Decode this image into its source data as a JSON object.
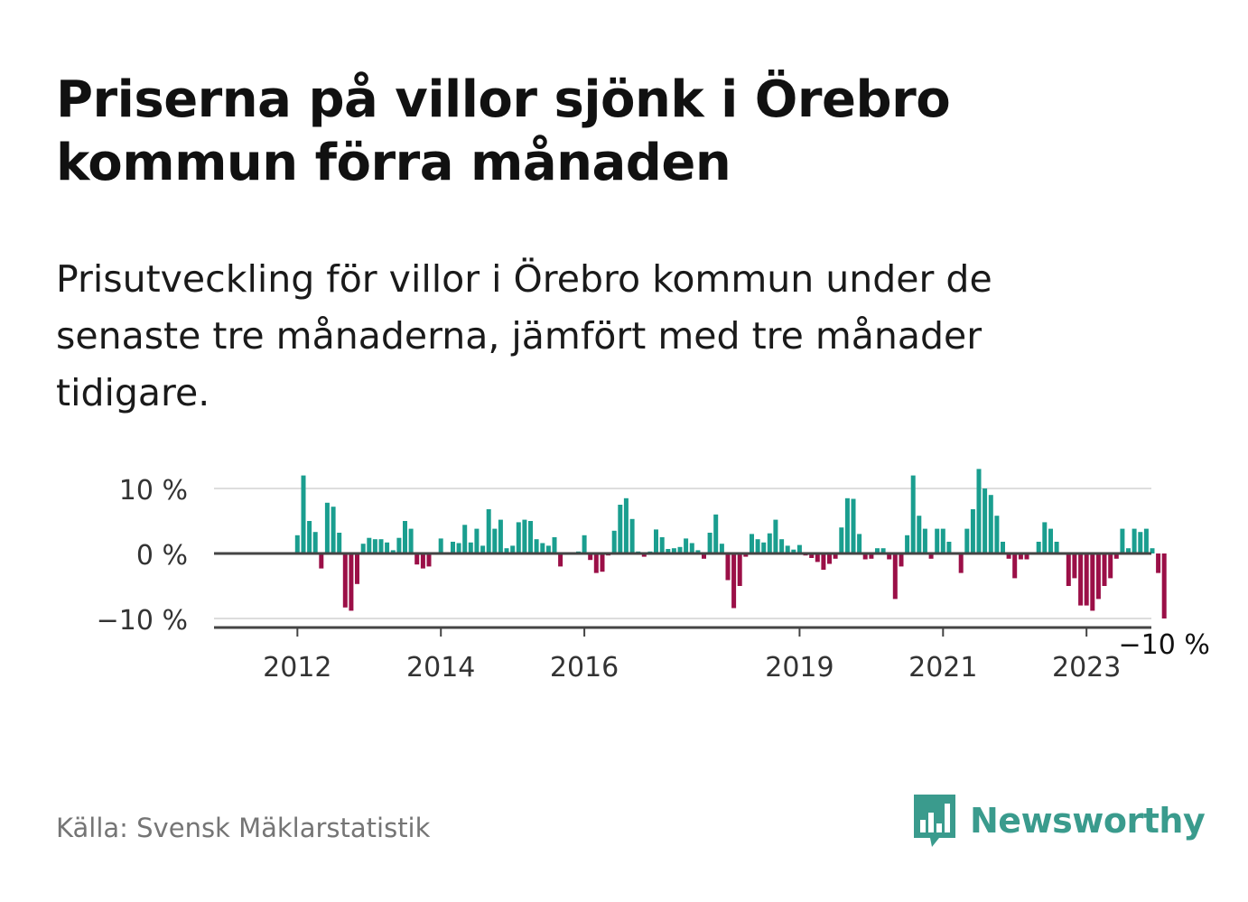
{
  "title": "Priserna på villor sjönk i Örebro kommun förra månaden",
  "subtitle": "Prisutveckling för villor i Örebro kommun under de senaste tre månaderna, jämfört med tre månader tidigare.",
  "source": "Källa: Svensk Mäklarstatistik",
  "logo_text": "Newsworthy",
  "colors": {
    "positive": "#1a9e8f",
    "negative": "#9b0f47",
    "grid": "#dddddd",
    "baseline": "#444444",
    "logo": "#3a9b8d"
  },
  "chart_data": {
    "type": "bar",
    "start": "2011-06",
    "ylim": [
      -11,
      10
    ],
    "yticks": [
      {
        "v": 10,
        "label": "10 %"
      },
      {
        "v": 0,
        "label": "0 %"
      },
      {
        "v": -10,
        "label": "−10 %"
      }
    ],
    "xticks": [
      {
        "year": 2012,
        "label": "2012"
      },
      {
        "year": 2014,
        "label": "2014"
      },
      {
        "year": 2016,
        "label": "2016"
      },
      {
        "year": 2019,
        "label": "2019"
      },
      {
        "year": 2021,
        "label": "2021"
      },
      {
        "year": 2023,
        "label": "2023"
      }
    ],
    "annotation": {
      "label": "−10 %",
      "value": -10
    },
    "values": [
      0,
      0,
      0,
      0,
      0,
      0,
      0,
      2.8,
      12,
      5,
      3.3,
      -2.3,
      7.8,
      7.2,
      3.2,
      -8.3,
      -8.8,
      -4.7,
      1.5,
      2.4,
      2.2,
      2.2,
      1.7,
      0.5,
      2.4,
      5,
      3.8,
      -1.7,
      -2.3,
      -2,
      0.2,
      2.3,
      0,
      1.8,
      1.6,
      4.4,
      1.7,
      3.8,
      1.2,
      6.8,
      3.8,
      5.2,
      0.8,
      1.2,
      4.8,
      5.2,
      5,
      2.2,
      1.6,
      1.2,
      2.5,
      -2,
      0.2,
      0.2,
      0.3,
      2.8,
      -1,
      -3,
      -2.8,
      -0.3,
      3.5,
      7.5,
      8.5,
      5.3,
      0.3,
      -0.5,
      0.3,
      3.7,
      2.5,
      0.7,
      0.8,
      1,
      2.3,
      1.6,
      0.5,
      -0.8,
      3.2,
      6,
      1.5,
      -4.1,
      -8.4,
      -5,
      -0.5,
      3,
      2.2,
      1.7,
      3.1,
      5.2,
      2.2,
      1.2,
      0.6,
      1.3,
      -0.3,
      -0.7,
      -1.3,
      -2.5,
      -1.6,
      -0.8,
      4,
      8.5,
      8.4,
      3,
      -0.9,
      -0.8,
      0.8,
      0.8,
      -0.9,
      -7,
      -2,
      2.8,
      12,
      5.8,
      3.8,
      -0.8,
      3.8,
      3.8,
      1.8,
      0,
      -3,
      3.8,
      6.8,
      13,
      10,
      9,
      5.8,
      1.8,
      -0.8,
      -3.8,
      -0.9,
      -0.9,
      0,
      1.8,
      4.8,
      3.8,
      1.8,
      0,
      -5,
      -3.8,
      -8,
      -8,
      -8.8,
      -7,
      -5,
      -3.8,
      -0.8,
      3.8,
      0.8,
      3.8,
      3.3,
      3.8,
      0.8,
      -3,
      -10
    ]
  }
}
